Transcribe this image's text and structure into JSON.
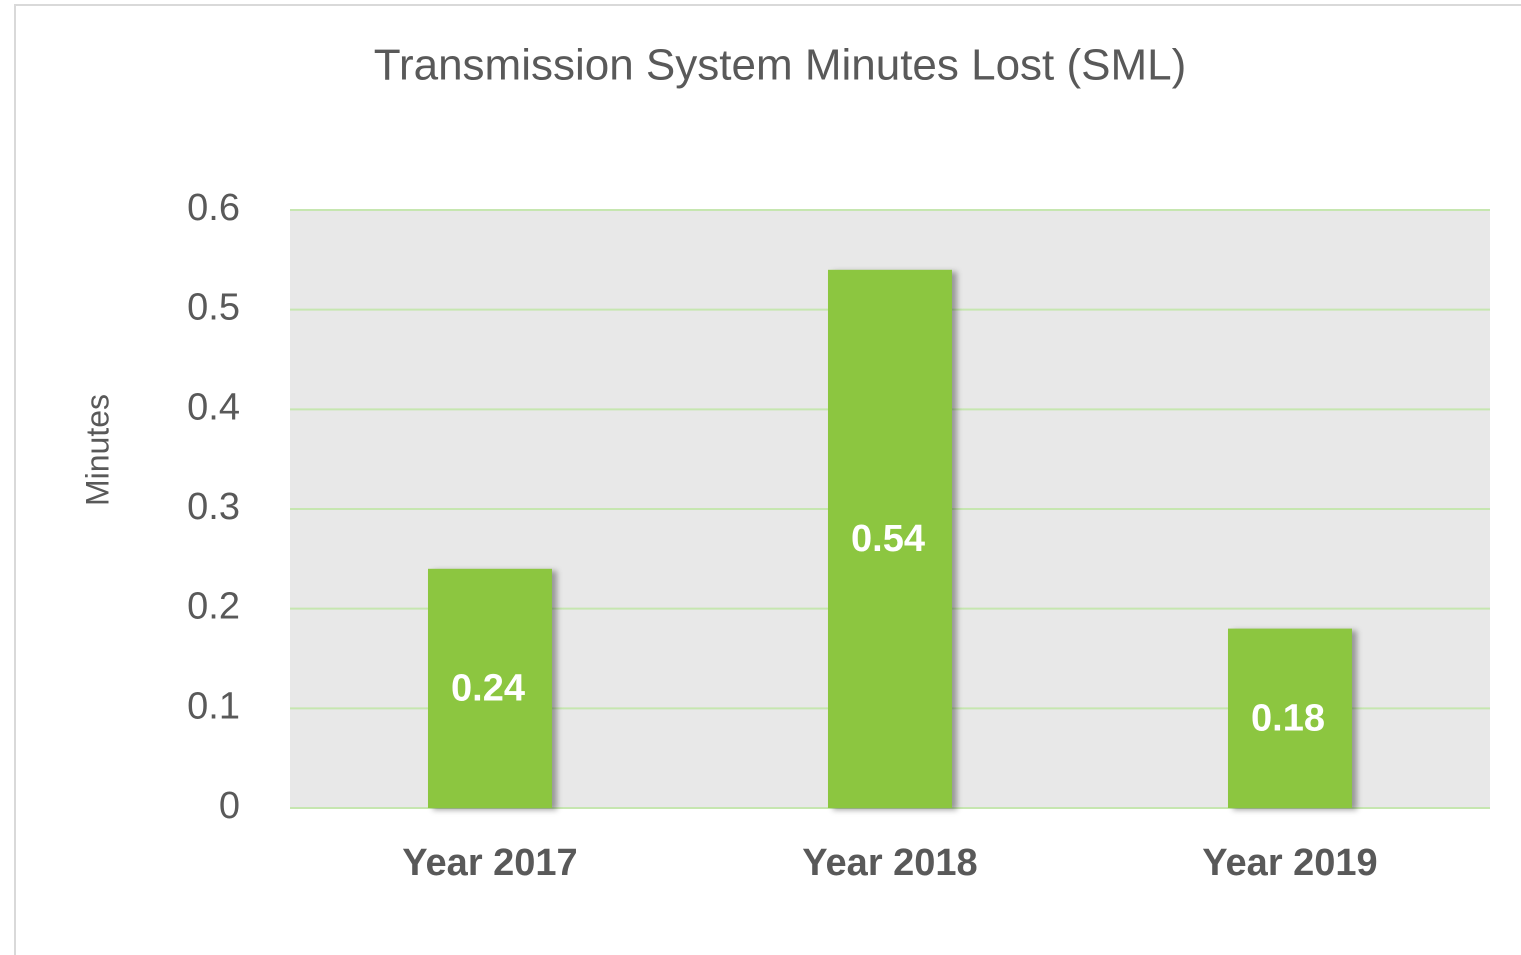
{
  "chart_data": {
    "type": "bar",
    "title": "Transmission System Minutes Lost (SML)",
    "y_label": "Minutes",
    "categories": [
      "Year 2017",
      "Year 2018",
      "Year 2019"
    ],
    "values": [
      0.24,
      0.54,
      0.18
    ],
    "color": "#8cc63f",
    "ylim": [
      0,
      0.6
    ],
    "yticks": [
      0,
      0.1,
      0.2,
      0.3,
      0.4,
      0.5,
      0.6
    ],
    "grid": true
  }
}
